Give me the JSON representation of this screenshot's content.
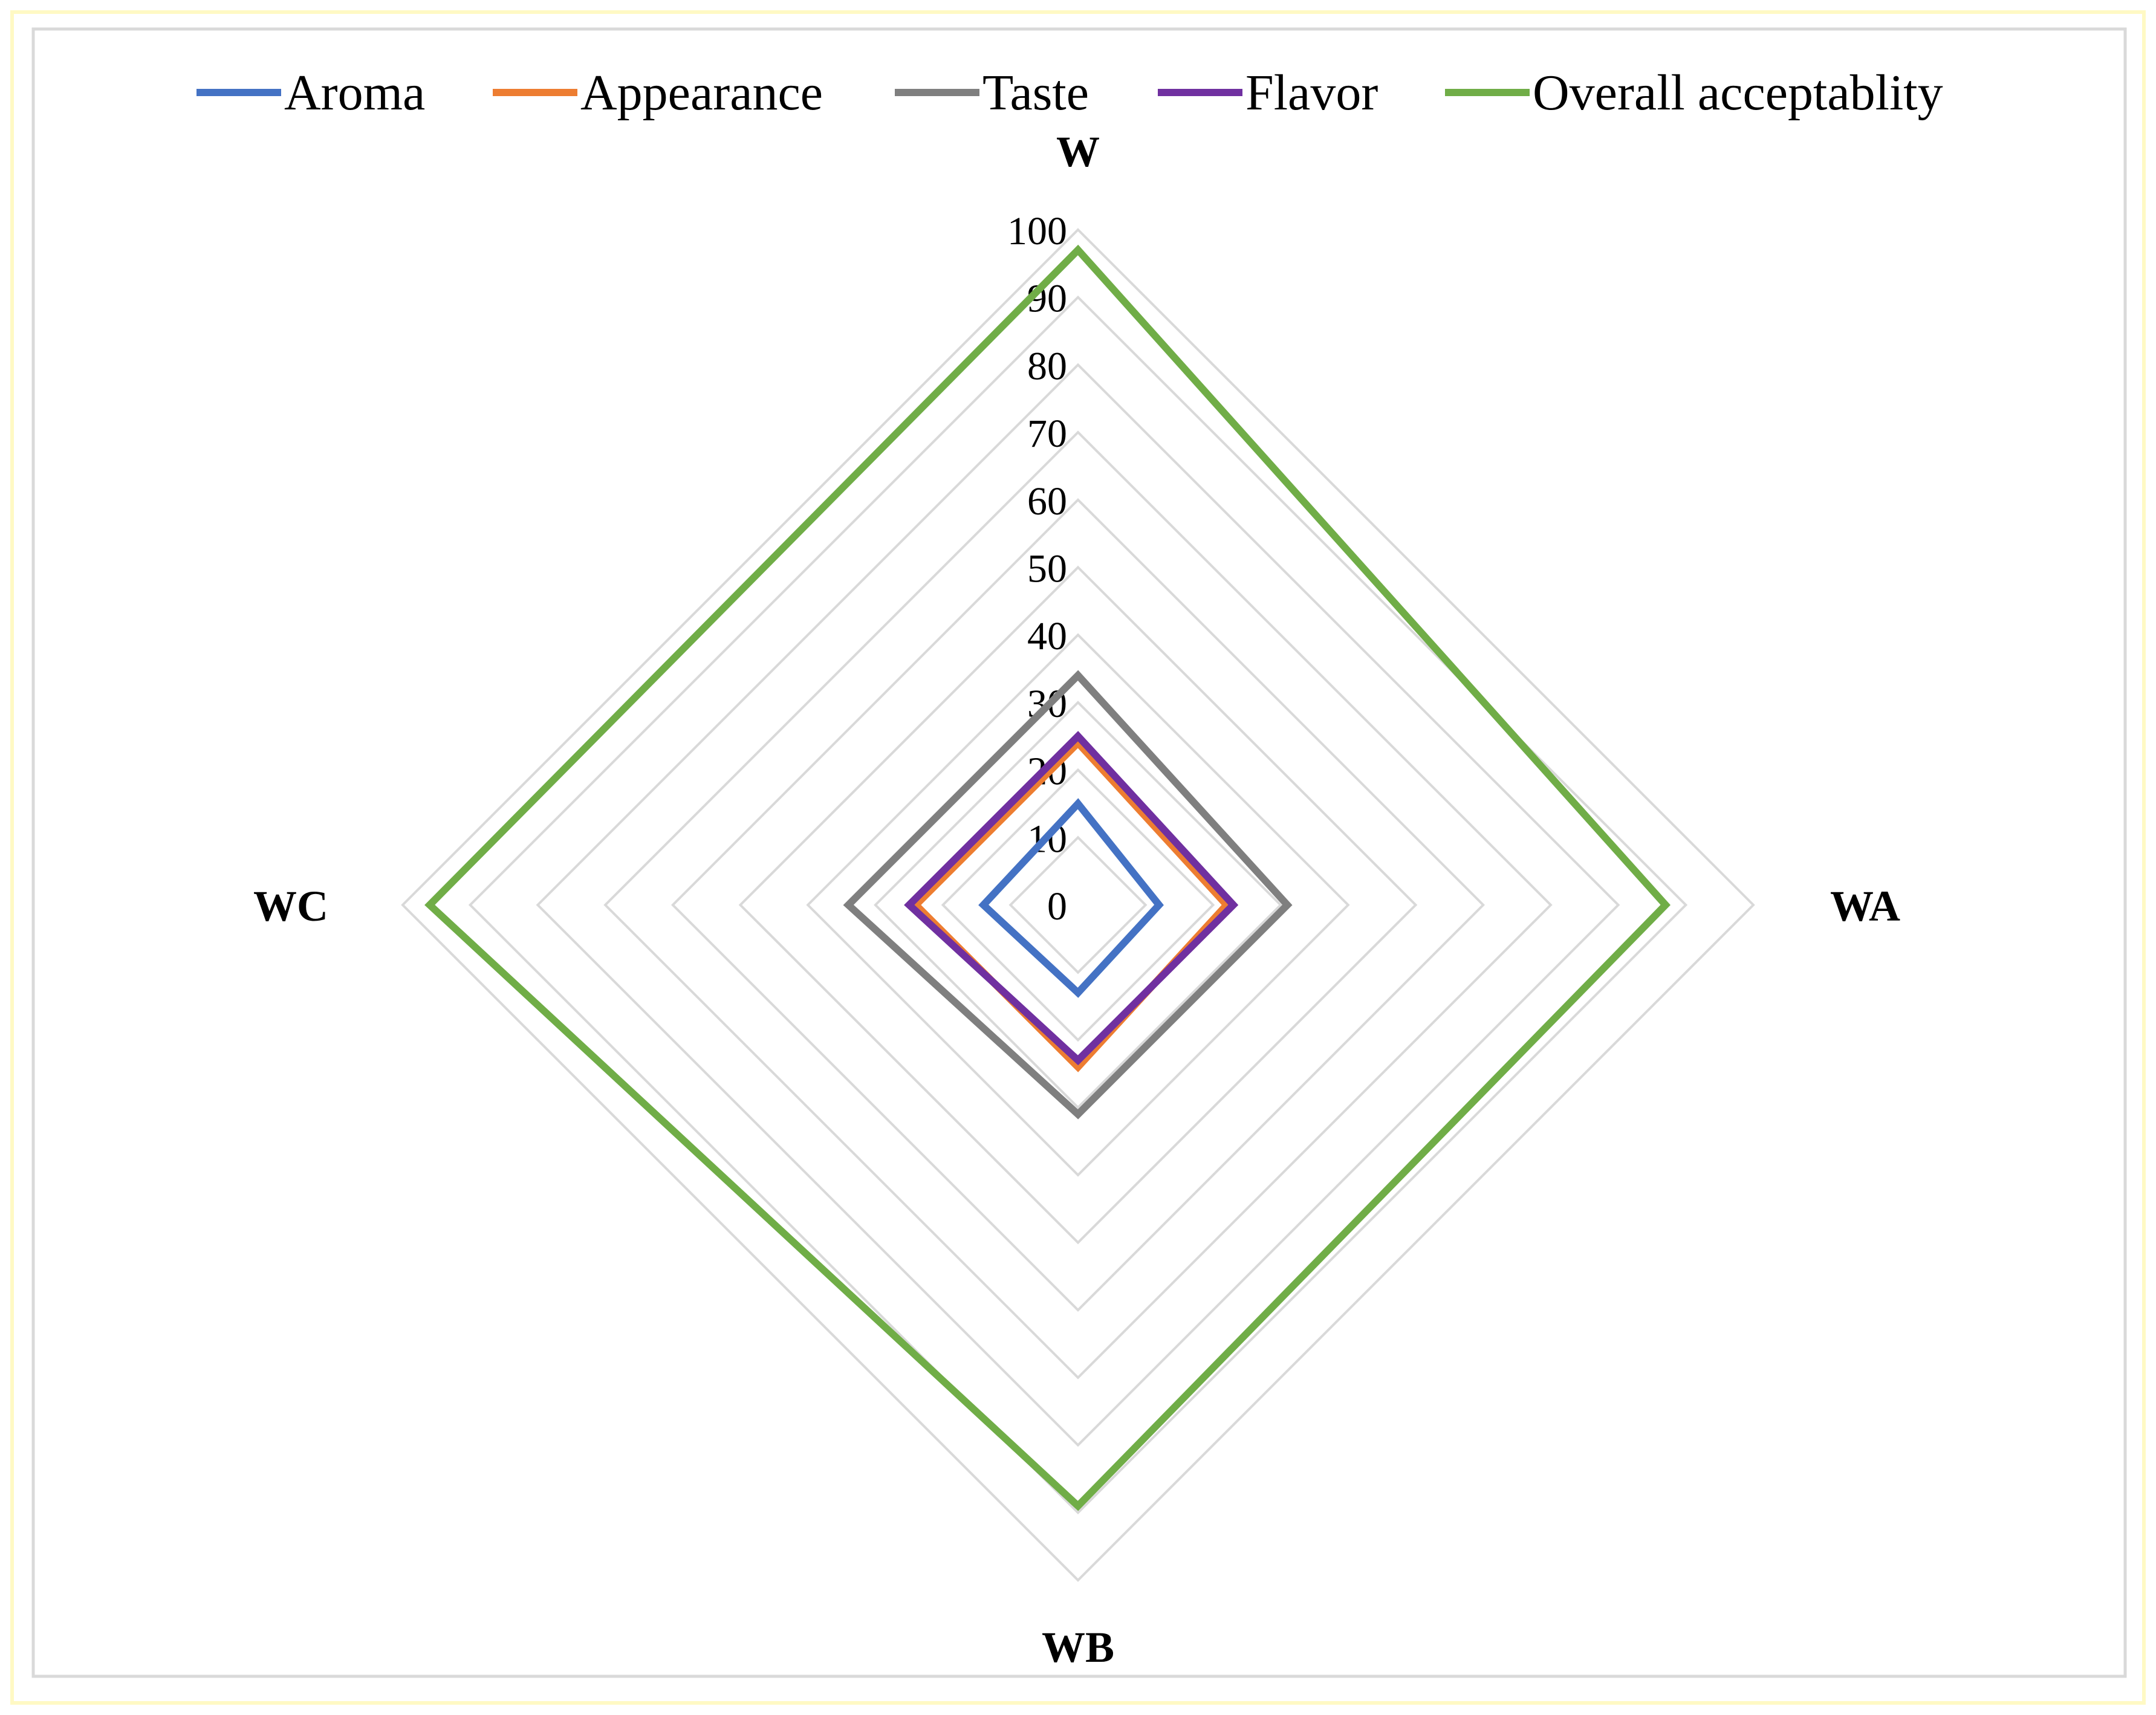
{
  "chart_data": {
    "type": "radar",
    "categories": [
      "W",
      "WA",
      "WB",
      "WC"
    ],
    "r_range": [
      0,
      100
    ],
    "r_ticks": [
      "0",
      "10",
      "20",
      "30",
      "40",
      "50",
      "60",
      "70",
      "80",
      "90",
      "100"
    ],
    "grid": true,
    "legend_position": "top",
    "series": [
      {
        "name": "Aroma",
        "color": "#4472C4",
        "values": [
          15,
          12,
          13,
          14
        ]
      },
      {
        "name": "Appearance",
        "color": "#ED7D31",
        "values": [
          24,
          22,
          24,
          24
        ]
      },
      {
        "name": "Taste",
        "color": "#7F7F7F",
        "values": [
          34,
          31,
          31,
          34
        ]
      },
      {
        "name": "Flavor",
        "color": "#7030A0",
        "values": [
          25,
          23,
          23,
          25
        ]
      },
      {
        "name": "Overall acceptablity",
        "color": "#70AD47",
        "values": [
          97,
          87,
          89,
          96
        ]
      }
    ]
  }
}
